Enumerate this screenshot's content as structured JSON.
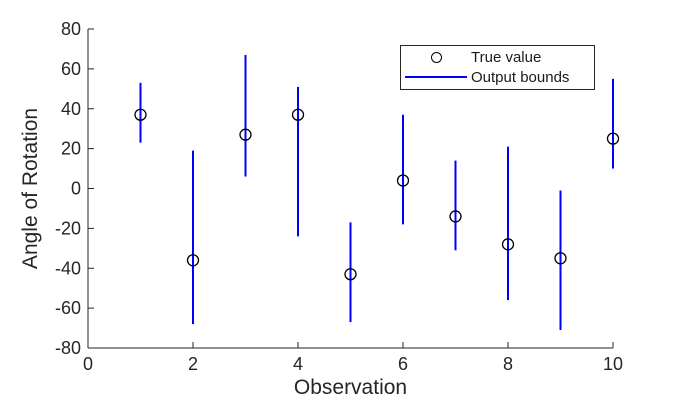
{
  "chart_data": {
    "type": "scatter",
    "title": "",
    "xlabel": "Observation",
    "ylabel": "Angle of Rotation",
    "xlim": [
      0,
      10
    ],
    "ylim": [
      -80,
      80
    ],
    "x_ticks": [
      0,
      2,
      4,
      6,
      8,
      10
    ],
    "y_ticks": [
      -80,
      -60,
      -40,
      -20,
      0,
      20,
      40,
      60,
      80
    ],
    "grid": false,
    "axis_color": "#262626",
    "x": [
      1,
      2,
      3,
      4,
      5,
      6,
      7,
      8,
      9,
      10
    ],
    "series": [
      {
        "name": "True value",
        "type": "scatter",
        "marker": "circle",
        "color": "#000000",
        "values": [
          37,
          -36,
          27,
          37,
          -43,
          4,
          -14,
          -28,
          -35,
          25
        ]
      },
      {
        "name": "Output bounds",
        "type": "errorbar",
        "color": "#0000ff",
        "upper": [
          53,
          19,
          67,
          51,
          -17,
          37,
          14,
          21,
          -1,
          55
        ],
        "lower": [
          23,
          -68,
          6,
          -24,
          -67,
          -18,
          -31,
          -56,
          -71,
          10
        ]
      }
    ],
    "legend": {
      "position": "top-right",
      "entries": [
        {
          "label": "True value",
          "marker": "circle",
          "color": "#000000"
        },
        {
          "label": "Output bounds",
          "marker": "line",
          "color": "#0000ff"
        }
      ]
    }
  }
}
